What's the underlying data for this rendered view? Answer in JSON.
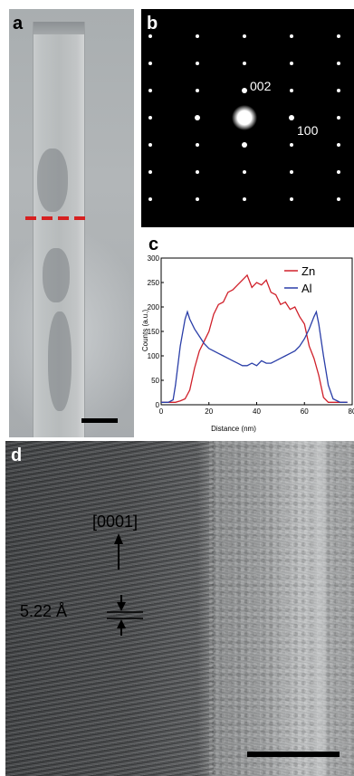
{
  "panels": {
    "a": {
      "label": "a"
    },
    "b": {
      "label": "b",
      "spot_labels": {
        "s002": "002",
        "s100": "100"
      }
    },
    "c": {
      "label": "c"
    },
    "d": {
      "label": "d",
      "direction": "[0001]",
      "spacing": "5.22 Å"
    }
  },
  "colors": {
    "zn": "#d0202a",
    "al": "#2a3ea8",
    "dash": "#d62020"
  },
  "chart_data": {
    "type": "line",
    "title": "",
    "xlabel": "Distance (nm)",
    "ylabel": "Counts (a.u.)",
    "xlim": [
      0,
      80
    ],
    "ylim": [
      0,
      300
    ],
    "xticks": [
      0,
      20,
      40,
      60,
      80
    ],
    "yticks": [
      0,
      50,
      100,
      150,
      200,
      250,
      300
    ],
    "legend_position": "top-right",
    "series": [
      {
        "name": "Zn",
        "color": "#d0202a",
        "x": [
          0,
          3,
          6,
          8,
          10,
          12,
          14,
          16,
          18,
          20,
          22,
          24,
          26,
          28,
          30,
          32,
          34,
          36,
          38,
          40,
          42,
          44,
          46,
          48,
          50,
          52,
          54,
          56,
          58,
          60,
          62,
          64,
          66,
          68,
          70,
          72,
          75,
          78
        ],
        "y": [
          5,
          5,
          5,
          8,
          12,
          30,
          75,
          110,
          130,
          150,
          185,
          205,
          210,
          230,
          235,
          245,
          255,
          265,
          240,
          250,
          245,
          255,
          230,
          225,
          205,
          210,
          195,
          200,
          180,
          165,
          120,
          95,
          60,
          15,
          5,
          5,
          5,
          5
        ]
      },
      {
        "name": "Al",
        "color": "#2a3ea8",
        "x": [
          0,
          3,
          5,
          6,
          8,
          10,
          11,
          12,
          14,
          16,
          18,
          20,
          22,
          24,
          26,
          28,
          30,
          32,
          34,
          36,
          38,
          40,
          42,
          44,
          46,
          48,
          50,
          52,
          54,
          56,
          58,
          60,
          62,
          64,
          65,
          66,
          68,
          70,
          72,
          75,
          78
        ],
        "y": [
          5,
          5,
          10,
          40,
          120,
          175,
          190,
          175,
          155,
          140,
          125,
          115,
          110,
          105,
          100,
          95,
          90,
          85,
          80,
          80,
          85,
          80,
          90,
          85,
          85,
          90,
          95,
          100,
          105,
          110,
          120,
          135,
          155,
          180,
          190,
          165,
          100,
          40,
          12,
          5,
          5
        ]
      }
    ]
  }
}
